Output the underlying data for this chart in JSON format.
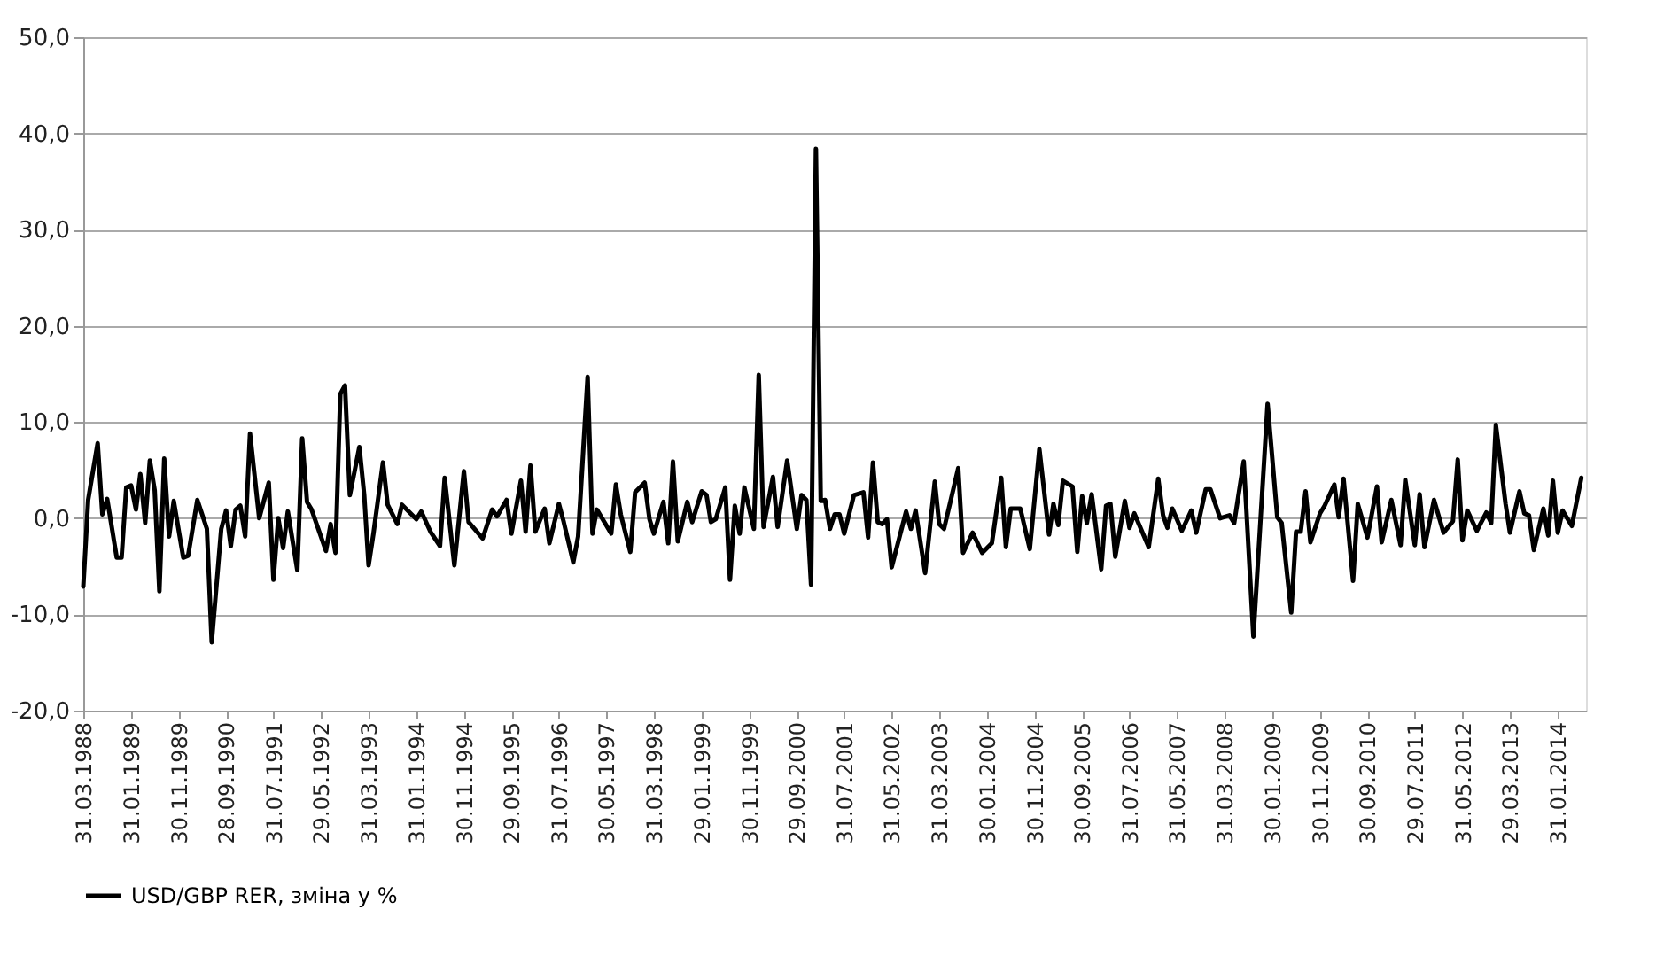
{
  "chart_data": {
    "type": "line",
    "x": [
      "1988-03",
      "1988-04",
      "1988-06",
      "1988-07",
      "1988-08",
      "1988-10",
      "1988-11",
      "1988-12",
      "1989-01",
      "1989-02",
      "1989-03",
      "1989-04",
      "1989-05",
      "1989-06",
      "1989-07",
      "1989-08",
      "1989-09",
      "1989-10",
      "1989-12",
      "1990-01",
      "1990-03",
      "1990-05",
      "1990-06",
      "1990-08",
      "1990-09",
      "1990-10",
      "1990-11",
      "1990-12",
      "1991-01",
      "1991-02",
      "1991-04",
      "1991-06",
      "1991-07",
      "1991-08",
      "1991-09",
      "1991-10",
      "1991-12",
      "1992-01",
      "1992-02",
      "1992-03",
      "1992-06",
      "1992-07",
      "1992-08",
      "1992-09",
      "1992-10",
      "1992-11",
      "1993-01",
      "1993-02",
      "1993-03",
      "1993-04",
      "1993-06",
      "1993-07",
      "1993-09",
      "1993-10",
      "1994-01",
      "1994-02",
      "1994-04",
      "1994-06",
      "1994-07",
      "1994-09",
      "1994-11",
      "1994-12",
      "1995-03",
      "1995-05",
      "1995-06",
      "1995-08",
      "1995-09",
      "1995-11",
      "1995-12",
      "1996-01",
      "1996-02",
      "1996-04",
      "1996-05",
      "1996-07",
      "1996-08",
      "1996-10",
      "1996-11",
      "1997-01",
      "1997-02",
      "1997-03",
      "1997-06",
      "1997-07",
      "1997-08",
      "1997-10",
      "1997-11",
      "1998-01",
      "1998-02",
      "1998-03",
      "1998-05",
      "1998-06",
      "1998-07",
      "1998-08",
      "1998-10",
      "1998-11",
      "1999-01",
      "1999-02",
      "1999-03",
      "1999-04",
      "1999-06",
      "1999-07",
      "1999-08",
      "1999-09",
      "1999-10",
      "1999-12",
      "2000-01",
      "2000-02",
      "2000-04",
      "2000-05",
      "2000-07",
      "2000-09",
      "2000-10",
      "2000-11",
      "2000-12",
      "2001-01",
      "2001-02",
      "2001-03",
      "2001-04",
      "2001-05",
      "2001-06",
      "2001-07",
      "2001-09",
      "2001-11",
      "2001-12",
      "2002-01",
      "2002-02",
      "2002-03",
      "2002-04",
      "2002-05",
      "2002-08",
      "2002-09",
      "2002-10",
      "2002-12",
      "2003-02",
      "2003-03",
      "2003-04",
      "2003-07",
      "2003-08",
      "2003-10",
      "2003-12",
      "2004-02",
      "2004-04",
      "2004-05",
      "2004-06",
      "2004-08",
      "2004-10",
      "2004-12",
      "2005-02",
      "2005-03",
      "2005-04",
      "2005-05",
      "2005-07",
      "2005-08",
      "2005-09",
      "2005-10",
      "2005-11",
      "2006-01",
      "2006-02",
      "2006-03",
      "2006-04",
      "2006-06",
      "2006-07",
      "2006-08",
      "2006-11",
      "2007-01",
      "2007-02",
      "2007-03",
      "2007-04",
      "2007-06",
      "2007-08",
      "2007-09",
      "2007-11",
      "2007-12",
      "2008-02",
      "2008-04",
      "2008-05",
      "2008-07",
      "2008-09",
      "2008-12",
      "2009-02",
      "2009-03",
      "2009-05",
      "2009-06",
      "2009-07",
      "2009-08",
      "2009-09",
      "2009-11",
      "2009-12",
      "2010-02",
      "2010-03",
      "2010-04",
      "2010-06",
      "2010-07",
      "2010-09",
      "2010-11",
      "2010-12",
      "2011-02",
      "2011-04",
      "2011-05",
      "2011-07",
      "2011-08",
      "2011-09",
      "2011-11",
      "2012-01",
      "2012-03",
      "2012-04",
      "2012-05",
      "2012-06",
      "2012-08",
      "2012-10",
      "2012-11",
      "2012-12",
      "2013-02",
      "2013-03",
      "2013-05",
      "2013-06",
      "2013-07",
      "2013-08",
      "2013-10",
      "2013-11",
      "2013-12",
      "2014-01",
      "2014-02",
      "2014-04",
      "2014-06"
    ],
    "series": [
      {
        "name": "USD/GBP RER, зміна у %",
        "color": "#000000",
        "values": [
          -7.1,
          1.9,
          7.8,
          0.4,
          2.0,
          -4.1,
          -4.1,
          3.2,
          3.4,
          0.9,
          4.6,
          -0.5,
          6.0,
          2.9,
          -7.6,
          6.2,
          -1.9,
          1.8,
          -4.1,
          -3.9,
          1.9,
          -1.1,
          -12.9,
          -1.1,
          0.8,
          -2.9,
          0.9,
          1.3,
          -1.9,
          8.8,
          0.0,
          3.7,
          -6.4,
          0.0,
          -3.1,
          0.7,
          -5.4,
          8.3,
          1.7,
          0.9,
          -3.4,
          -0.6,
          -3.6,
          12.9,
          13.8,
          2.4,
          7.4,
          2.4,
          -4.9,
          -1.6,
          5.8,
          1.4,
          -0.6,
          1.4,
          -0.1,
          0.7,
          -1.4,
          -2.9,
          4.2,
          -4.9,
          4.9,
          -0.4,
          -2.1,
          0.9,
          0.2,
          1.9,
          -1.6,
          3.9,
          -1.4,
          5.5,
          -1.4,
          1.0,
          -2.6,
          1.5,
          -0.4,
          -4.6,
          -1.9,
          14.7,
          -1.6,
          0.9,
          -1.6,
          3.5,
          0.4,
          -3.5,
          2.7,
          3.7,
          -0.1,
          -1.6,
          1.7,
          -2.6,
          5.9,
          -2.4,
          1.7,
          -0.4,
          2.8,
          2.4,
          -0.4,
          -0.1,
          3.2,
          -6.4,
          1.3,
          -1.6,
          3.2,
          -1.1,
          14.9,
          -0.9,
          4.3,
          -0.9,
          6.0,
          -1.1,
          2.4,
          1.9,
          -6.9,
          38.4,
          1.8,
          1.9,
          -1.1,
          0.4,
          0.4,
          -1.6,
          2.4,
          2.7,
          -2.0,
          5.8,
          -0.4,
          -0.6,
          -0.1,
          -5.1,
          0.7,
          -1.1,
          0.8,
          -5.7,
          3.8,
          -0.6,
          -1.1,
          5.2,
          -3.6,
          -1.5,
          -3.6,
          -2.6,
          4.2,
          -3.0,
          1.0,
          1.0,
          -3.2,
          7.2,
          -1.7,
          1.5,
          -0.7,
          3.9,
          3.3,
          -3.5,
          2.3,
          -0.5,
          2.5,
          -5.3,
          1.3,
          1.5,
          -4.0,
          1.8,
          -1.0,
          0.5,
          -3.0,
          4.1,
          0.3,
          -1.0,
          1.0,
          -1.3,
          0.8,
          -1.5,
          3.0,
          3.0,
          0.0,
          0.3,
          -0.5,
          5.9,
          -12.3,
          11.9,
          0.1,
          -0.5,
          -9.8,
          -1.4,
          -1.4,
          2.8,
          -2.5,
          0.5,
          1.3,
          3.5,
          0.1,
          4.1,
          -6.5,
          1.5,
          -2.0,
          3.3,
          -2.5,
          1.9,
          -2.8,
          4.0,
          -2.8,
          2.5,
          -3.0,
          1.9,
          -1.5,
          -0.3,
          6.1,
          -2.3,
          0.8,
          -1.3,
          0.6,
          -0.5,
          9.7,
          1.5,
          -1.5,
          2.8,
          0.5,
          0.3,
          -3.3,
          1.0,
          -1.8,
          3.9,
          -1.5,
          0.8,
          -0.8,
          4.2
        ]
      }
    ],
    "xlim": [
      "1988-03",
      "2014-07"
    ],
    "xticks": [
      {
        "value": "1988-03",
        "label": "31.03.1988"
      },
      {
        "value": "1989-01",
        "label": "31.01.1989"
      },
      {
        "value": "1989-11",
        "label": "30.11.1989"
      },
      {
        "value": "1990-09",
        "label": "28.09.1990"
      },
      {
        "value": "1991-07",
        "label": "31.07.1991"
      },
      {
        "value": "1992-05",
        "label": "29.05.1992"
      },
      {
        "value": "1993-03",
        "label": "31.03.1993"
      },
      {
        "value": "1994-01",
        "label": "31.01.1994"
      },
      {
        "value": "1994-11",
        "label": "30.11.1994"
      },
      {
        "value": "1995-09",
        "label": "29.09.1995"
      },
      {
        "value": "1996-07",
        "label": "31.07.1996"
      },
      {
        "value": "1997-05",
        "label": "30.05.1997"
      },
      {
        "value": "1998-03",
        "label": "31.03.1998"
      },
      {
        "value": "1999-01",
        "label": "29.01.1999"
      },
      {
        "value": "1999-11",
        "label": "30.11.1999"
      },
      {
        "value": "2000-09",
        "label": "29.09.2000"
      },
      {
        "value": "2001-07",
        "label": "31.07.2001"
      },
      {
        "value": "2002-05",
        "label": "31.05.2002"
      },
      {
        "value": "2003-03",
        "label": "31.03.2003"
      },
      {
        "value": "2004-01",
        "label": "30.01.2004"
      },
      {
        "value": "2004-11",
        "label": "30.11.2004"
      },
      {
        "value": "2005-09",
        "label": "30.09.2005"
      },
      {
        "value": "2006-07",
        "label": "31.07.2006"
      },
      {
        "value": "2007-05",
        "label": "31.05.2007"
      },
      {
        "value": "2008-03",
        "label": "31.03.2008"
      },
      {
        "value": "2009-01",
        "label": "30.01.2009"
      },
      {
        "value": "2009-11",
        "label": "30.11.2009"
      },
      {
        "value": "2010-09",
        "label": "30.09.2010"
      },
      {
        "value": "2011-07",
        "label": "29.07.2011"
      },
      {
        "value": "2012-05",
        "label": "31.05.2012"
      },
      {
        "value": "2013-03",
        "label": "29.03.2013"
      },
      {
        "value": "2014-01",
        "label": "31.01.2014"
      }
    ],
    "ylim": [
      -20,
      50
    ],
    "yticks": [
      {
        "value": -20,
        "label": "-20,0"
      },
      {
        "value": -10,
        "label": "-10,0"
      },
      {
        "value": 0,
        "label": "0,0"
      },
      {
        "value": 10,
        "label": "10,0"
      },
      {
        "value": 20,
        "label": "20,0"
      },
      {
        "value": 30,
        "label": "30,0"
      },
      {
        "value": 40,
        "label": "40,0"
      },
      {
        "value": 50,
        "label": "50,0"
      }
    ],
    "grid": "y",
    "legend": "bottom",
    "line_style": "solid"
  }
}
